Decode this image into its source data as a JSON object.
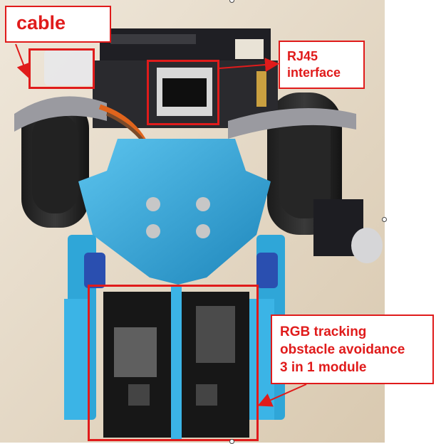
{
  "labels": {
    "cable": "cable",
    "rj45_line1": "RJ45",
    "rj45_line2": "interface",
    "module_line1": "RGB tracking",
    "module_line2": "obstacle avoidance",
    "module_line3": "3 in 1 module"
  },
  "colors": {
    "annotation_red": "#e01b1b",
    "robot_blue": "#2fa6d8",
    "floor": "#e2d6c2"
  }
}
